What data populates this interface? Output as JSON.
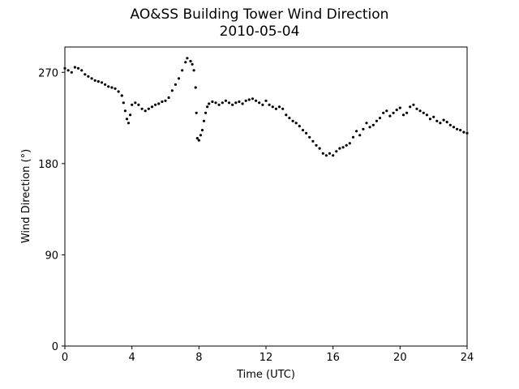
{
  "chart_data": {
    "type": "scatter",
    "title": "AO&SS Building Tower Wind Direction",
    "subtitle": "2010-05-04",
    "xlabel": "Time (UTC)",
    "ylabel": "Wind Direction (°)",
    "xlim": [
      0,
      24
    ],
    "ylim": [
      0,
      295
    ],
    "xticks": [
      0,
      4,
      8,
      12,
      16,
      20,
      24
    ],
    "yticks": [
      0,
      90,
      180,
      270
    ],
    "grid": false,
    "marker_color": "#000000",
    "series": [
      {
        "points": [
          [
            0.0,
            274
          ],
          [
            0.2,
            272
          ],
          [
            0.4,
            270
          ],
          [
            0.6,
            275
          ],
          [
            0.8,
            274
          ],
          [
            1.0,
            272
          ],
          [
            1.2,
            268
          ],
          [
            1.4,
            266
          ],
          [
            1.6,
            264
          ],
          [
            1.8,
            262
          ],
          [
            2.0,
            261
          ],
          [
            2.2,
            260
          ],
          [
            2.4,
            258
          ],
          [
            2.6,
            256
          ],
          [
            2.8,
            255
          ],
          [
            3.0,
            254
          ],
          [
            3.2,
            251
          ],
          [
            3.4,
            247
          ],
          [
            3.5,
            240
          ],
          [
            3.6,
            232
          ],
          [
            3.7,
            224
          ],
          [
            3.8,
            220
          ],
          [
            3.9,
            228
          ],
          [
            4.0,
            238
          ],
          [
            4.2,
            240
          ],
          [
            4.4,
            238
          ],
          [
            4.6,
            234
          ],
          [
            4.8,
            232
          ],
          [
            5.0,
            234
          ],
          [
            5.2,
            236
          ],
          [
            5.4,
            238
          ],
          [
            5.6,
            239
          ],
          [
            5.8,
            241
          ],
          [
            6.0,
            242
          ],
          [
            6.2,
            245
          ],
          [
            6.4,
            252
          ],
          [
            6.6,
            258
          ],
          [
            6.8,
            264
          ],
          [
            7.0,
            272
          ],
          [
            7.2,
            280
          ],
          [
            7.3,
            284
          ],
          [
            7.5,
            281
          ],
          [
            7.6,
            278
          ],
          [
            7.7,
            272
          ],
          [
            7.8,
            255
          ],
          [
            7.85,
            230
          ],
          [
            7.9,
            205
          ],
          [
            8.0,
            203
          ],
          [
            8.1,
            208
          ],
          [
            8.2,
            213
          ],
          [
            8.3,
            222
          ],
          [
            8.4,
            230
          ],
          [
            8.5,
            236
          ],
          [
            8.6,
            239
          ],
          [
            8.8,
            241
          ],
          [
            9.0,
            240
          ],
          [
            9.2,
            238
          ],
          [
            9.4,
            240
          ],
          [
            9.6,
            242
          ],
          [
            9.8,
            240
          ],
          [
            10.0,
            238
          ],
          [
            10.2,
            240
          ],
          [
            10.4,
            241
          ],
          [
            10.6,
            239
          ],
          [
            10.8,
            242
          ],
          [
            11.0,
            243
          ],
          [
            11.2,
            244
          ],
          [
            11.4,
            242
          ],
          [
            11.6,
            240
          ],
          [
            11.8,
            238
          ],
          [
            12.0,
            242
          ],
          [
            12.2,
            238
          ],
          [
            12.4,
            236
          ],
          [
            12.6,
            234
          ],
          [
            12.8,
            236
          ],
          [
            13.0,
            234
          ],
          [
            13.2,
            228
          ],
          [
            13.4,
            225
          ],
          [
            13.6,
            222
          ],
          [
            13.8,
            220
          ],
          [
            14.0,
            217
          ],
          [
            14.2,
            213
          ],
          [
            14.4,
            210
          ],
          [
            14.6,
            206
          ],
          [
            14.8,
            202
          ],
          [
            15.0,
            198
          ],
          [
            15.2,
            195
          ],
          [
            15.4,
            190
          ],
          [
            15.6,
            188
          ],
          [
            15.8,
            190
          ],
          [
            16.0,
            188
          ],
          [
            16.2,
            192
          ],
          [
            16.4,
            195
          ],
          [
            16.6,
            196
          ],
          [
            16.8,
            198
          ],
          [
            17.0,
            200
          ],
          [
            17.2,
            206
          ],
          [
            17.4,
            212
          ],
          [
            17.6,
            208
          ],
          [
            17.8,
            214
          ],
          [
            18.0,
            220
          ],
          [
            18.2,
            216
          ],
          [
            18.4,
            218
          ],
          [
            18.6,
            222
          ],
          [
            18.8,
            225
          ],
          [
            19.0,
            230
          ],
          [
            19.2,
            232
          ],
          [
            19.4,
            227
          ],
          [
            19.6,
            230
          ],
          [
            19.8,
            233
          ],
          [
            20.0,
            235
          ],
          [
            20.2,
            228
          ],
          [
            20.4,
            230
          ],
          [
            20.6,
            236
          ],
          [
            20.8,
            238
          ],
          [
            21.0,
            234
          ],
          [
            21.2,
            232
          ],
          [
            21.4,
            230
          ],
          [
            21.6,
            228
          ],
          [
            21.8,
            224
          ],
          [
            22.0,
            226
          ],
          [
            22.2,
            222
          ],
          [
            22.4,
            220
          ],
          [
            22.6,
            223
          ],
          [
            22.8,
            221
          ],
          [
            23.0,
            218
          ],
          [
            23.2,
            216
          ],
          [
            23.4,
            214
          ],
          [
            23.6,
            213
          ],
          [
            23.8,
            211
          ],
          [
            24.0,
            210
          ]
        ]
      }
    ]
  }
}
